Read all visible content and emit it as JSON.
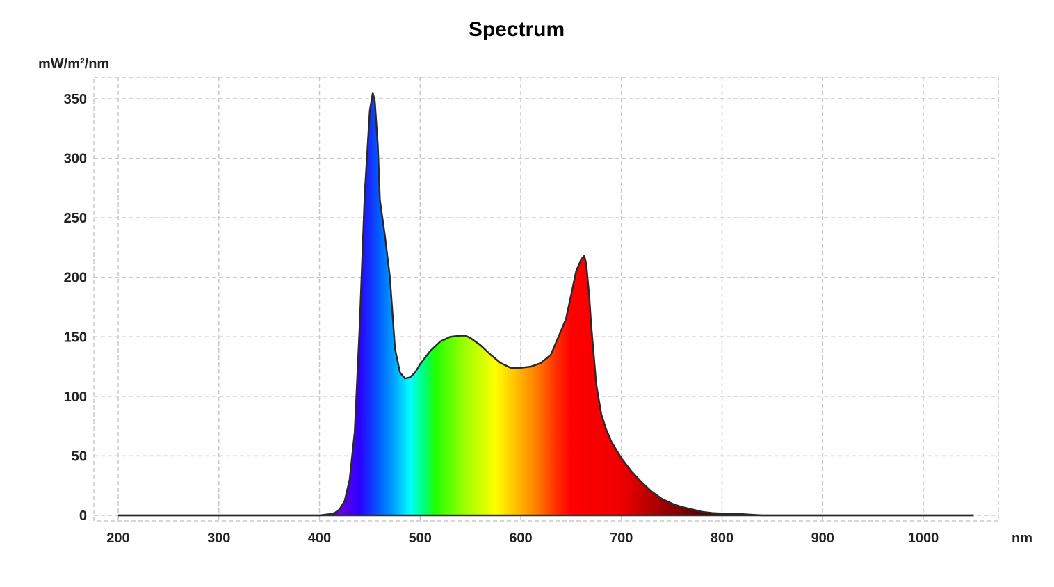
{
  "chart_data": {
    "type": "area",
    "title": "Spectrum",
    "ylabel": "mW/m²/nm",
    "xunit": "nm",
    "xlim": [
      200,
      1050
    ],
    "ylim": [
      0,
      350
    ],
    "x_ticks": [
      200,
      300,
      400,
      500,
      600,
      700,
      800,
      900,
      1000
    ],
    "y_ticks": [
      0,
      50,
      100,
      150,
      200,
      250,
      300,
      350
    ],
    "grid": true,
    "fill": "visible-spectrum gradient",
    "series": [
      {
        "x": [
          200,
          400,
          405,
          410,
          415,
          420,
          425,
          430,
          435,
          440,
          445,
          450,
          453,
          455,
          458,
          460,
          465,
          470,
          475,
          480,
          485,
          490,
          495,
          500,
          510,
          520,
          530,
          540,
          545,
          550,
          560,
          570,
          580,
          590,
          600,
          610,
          620,
          630,
          640,
          645,
          650,
          655,
          660,
          663,
          665,
          668,
          670,
          675,
          680,
          685,
          690,
          700,
          710,
          720,
          730,
          740,
          750,
          760,
          770,
          780,
          790,
          800,
          820,
          840,
          1050
        ],
        "values": [
          0,
          0,
          0.5,
          1,
          2,
          5,
          12,
          30,
          70,
          160,
          270,
          340,
          355,
          348,
          310,
          265,
          235,
          200,
          140,
          120,
          115,
          116,
          120,
          127,
          138,
          146,
          150,
          151,
          151,
          149,
          143,
          135,
          128,
          124,
          124,
          125,
          128,
          135,
          155,
          165,
          185,
          205,
          215,
          218,
          212,
          185,
          160,
          110,
          85,
          72,
          62,
          48,
          37,
          28,
          20,
          14,
          10,
          7,
          5,
          3,
          2,
          1.5,
          1,
          0,
          0
        ]
      }
    ]
  }
}
